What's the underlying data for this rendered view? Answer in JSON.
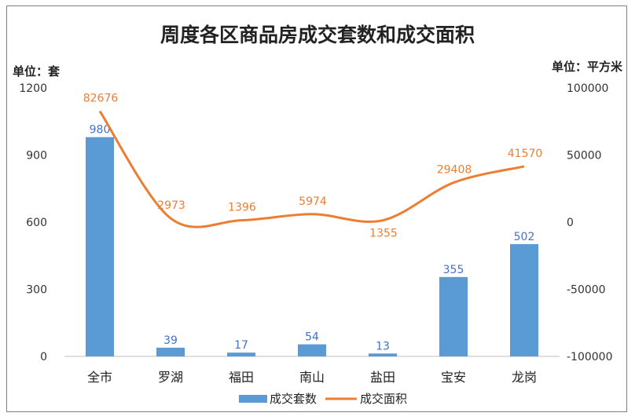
{
  "chart_data": {
    "type": "bar",
    "title": "周度各区商品房成交套数和成交面积",
    "left_unit": "单位：套",
    "right_unit": "单位：平方米",
    "categories": [
      "全市",
      "罗湖",
      "福田",
      "南山",
      "盐田",
      "宝安",
      "龙岗"
    ],
    "ylim_left": [
      0,
      1200
    ],
    "yticks_left": [
      "0",
      "300",
      "600",
      "900",
      "1200"
    ],
    "ylim_right": [
      -100000,
      100000
    ],
    "yticks_right": [
      "-100000",
      "-50000",
      "0",
      "50000",
      "100000"
    ],
    "series": [
      {
        "name": "成交套数",
        "type": "bar",
        "axis": "left",
        "color": "#5b9bd5",
        "values": [
          980,
          39,
          17,
          54,
          13,
          355,
          502
        ],
        "labels": [
          "980",
          "39",
          "17",
          "54",
          "13",
          "355",
          "502"
        ]
      },
      {
        "name": "成交面积",
        "type": "line",
        "axis": "right",
        "color": "#ed7d31",
        "values": [
          82676,
          2973,
          1396,
          5974,
          1355,
          29408,
          41570
        ],
        "labels": [
          "82676",
          "2973",
          "1396",
          "5974",
          "1355",
          "29408",
          "41570"
        ]
      }
    ],
    "legend_position": "bottom",
    "grid": false
  }
}
